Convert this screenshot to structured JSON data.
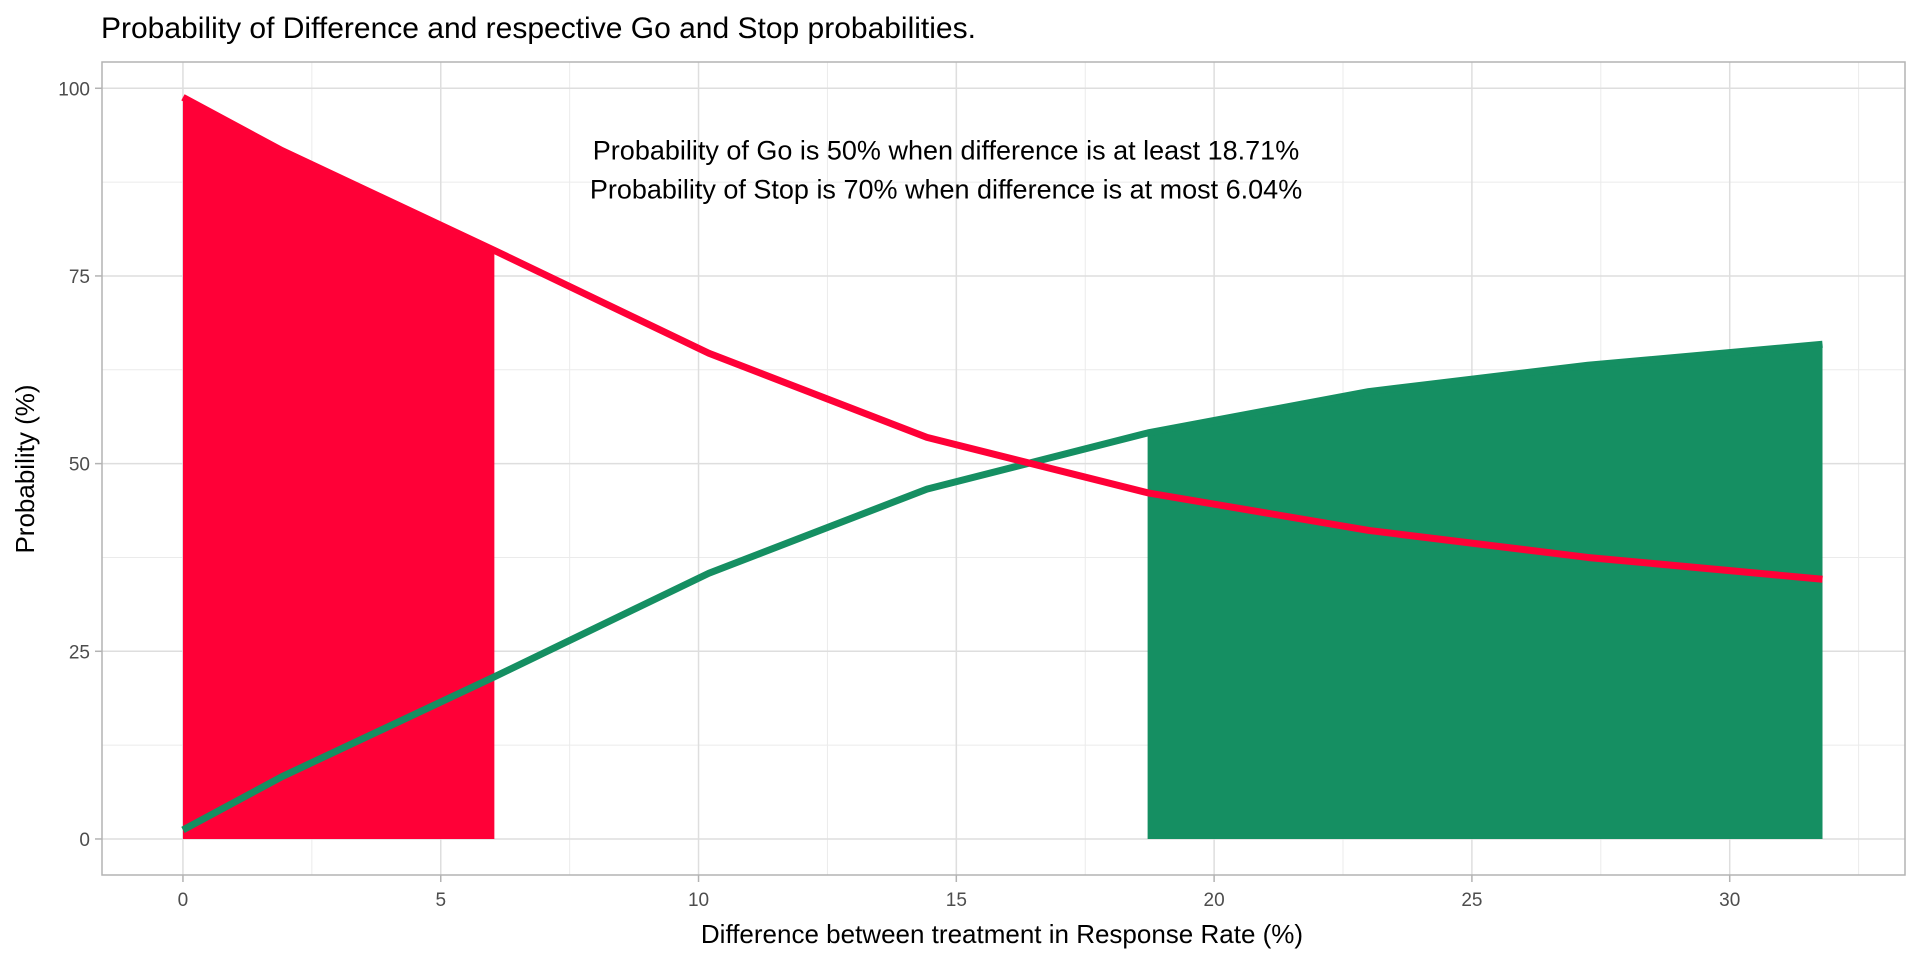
{
  "chart_data": {
    "type": "line",
    "title": "Probability of Difference and respective Go and Stop probabilities.",
    "xlabel": "Difference between treatment in Response Rate (%)",
    "ylabel": "Probability (%)",
    "xlim": [
      -1.57,
      33.4
    ],
    "ylim": [
      -4.8,
      103.5
    ],
    "xticks": [
      0,
      5,
      10,
      15,
      20,
      25,
      30
    ],
    "xtick_labels": [
      "0",
      "5",
      "10",
      "15",
      "20",
      "25",
      "30"
    ],
    "x_minor_grid": [
      2.5,
      7.5,
      12.5,
      17.5,
      22.5,
      27.5,
      32.5
    ],
    "yticks": [
      0,
      25,
      50,
      75,
      100
    ],
    "ytick_labels": [
      "0",
      "25",
      "50",
      "75",
      "100"
    ],
    "y_minor_grid": [
      12.5,
      37.5,
      62.5,
      87.5
    ],
    "grid": true,
    "legend": "none",
    "x": [
      0,
      1.92,
      6.04,
      10.2,
      14.43,
      18.72,
      23.0,
      27.25,
      31.8
    ],
    "series": [
      {
        "name": "Stop",
        "color": "#ff0037",
        "values": [
          98.8,
          91.7,
          78.4,
          64.7,
          53.5,
          46.1,
          41.1,
          37.5,
          34.6
        ]
      },
      {
        "name": "Go",
        "color": "#158f62",
        "values": [
          1.2,
          8.3,
          21.6,
          35.4,
          46.6,
          54.1,
          59.6,
          63.1,
          65.9
        ]
      }
    ],
    "shaded_regions": [
      {
        "name": "Stop region",
        "series": "Stop",
        "from": 0,
        "to": 6.04,
        "color": "#ff0037"
      },
      {
        "name": "Go region",
        "series": "Go",
        "from": 18.71,
        "to": 31.8,
        "color": "#158f62"
      }
    ],
    "annotations": [
      {
        "text": "Probability of Go is 50% when difference is at least 18.71%",
        "x": 14.8,
        "y": 90.5
      },
      {
        "text": "Probability of Stop is 70% when difference is at most 6.04%",
        "x": 14.8,
        "y": 85.3
      }
    ]
  }
}
